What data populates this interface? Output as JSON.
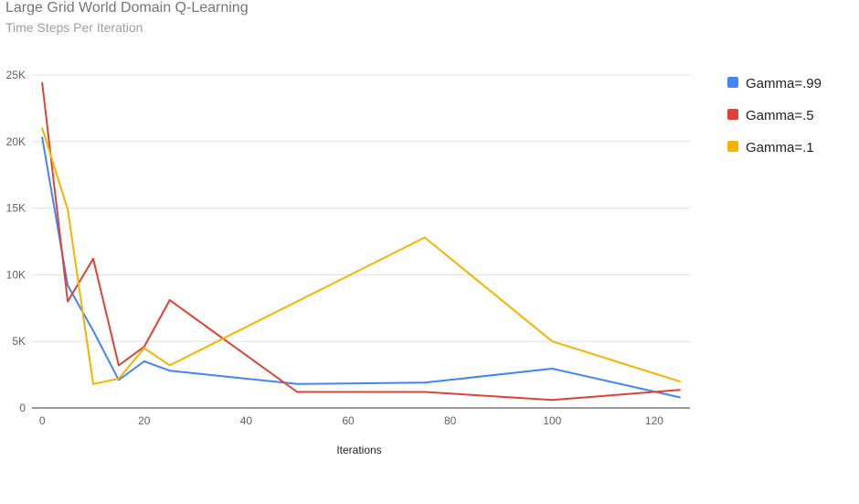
{
  "chart_data": {
    "type": "line",
    "title": "Large Grid World Domain Q-Learning",
    "subtitle": "Time Steps Per Iteration",
    "xlabel": "Iterations",
    "ylabel": "",
    "xlim": [
      -2,
      127
    ],
    "ylim": [
      0,
      25000
    ],
    "x_ticks": [
      0,
      20,
      40,
      60,
      80,
      100,
      120
    ],
    "x_tick_labels": [
      "0",
      "20",
      "40",
      "60",
      "80",
      "100",
      "120"
    ],
    "y_ticks": [
      0,
      5000,
      10000,
      15000,
      20000,
      25000
    ],
    "y_tick_labels": [
      "0",
      "5K",
      "10K",
      "15K",
      "20K",
      "25K"
    ],
    "grid": true,
    "legend_position": "right",
    "series": [
      {
        "name": "Gamma=.99",
        "color": "#4285f4",
        "points": [
          [
            0,
            20300
          ],
          [
            5,
            9200
          ],
          [
            10,
            5800
          ],
          [
            15,
            2100
          ],
          [
            20,
            3500
          ],
          [
            25,
            2800
          ],
          [
            50,
            1800
          ],
          [
            75,
            1900
          ],
          [
            100,
            2950
          ],
          [
            125,
            800
          ]
        ]
      },
      {
        "name": "Gamma=.5",
        "color": "#db4437",
        "points": [
          [
            0,
            24400
          ],
          [
            5,
            8000
          ],
          [
            10,
            11200
          ],
          [
            15,
            3200
          ],
          [
            20,
            4600
          ],
          [
            25,
            8100
          ],
          [
            50,
            1200
          ],
          [
            75,
            1200
          ],
          [
            100,
            600
          ],
          [
            125,
            1350
          ]
        ]
      },
      {
        "name": "Gamma=.1",
        "color": "#f4b400",
        "points": [
          [
            0,
            21000
          ],
          [
            5,
            14900
          ],
          [
            10,
            1800
          ],
          [
            15,
            2200
          ],
          [
            20,
            4500
          ],
          [
            25,
            3200
          ],
          [
            50,
            8000
          ],
          [
            75,
            12800
          ],
          [
            100,
            5000
          ],
          [
            125,
            2000
          ]
        ]
      }
    ]
  }
}
